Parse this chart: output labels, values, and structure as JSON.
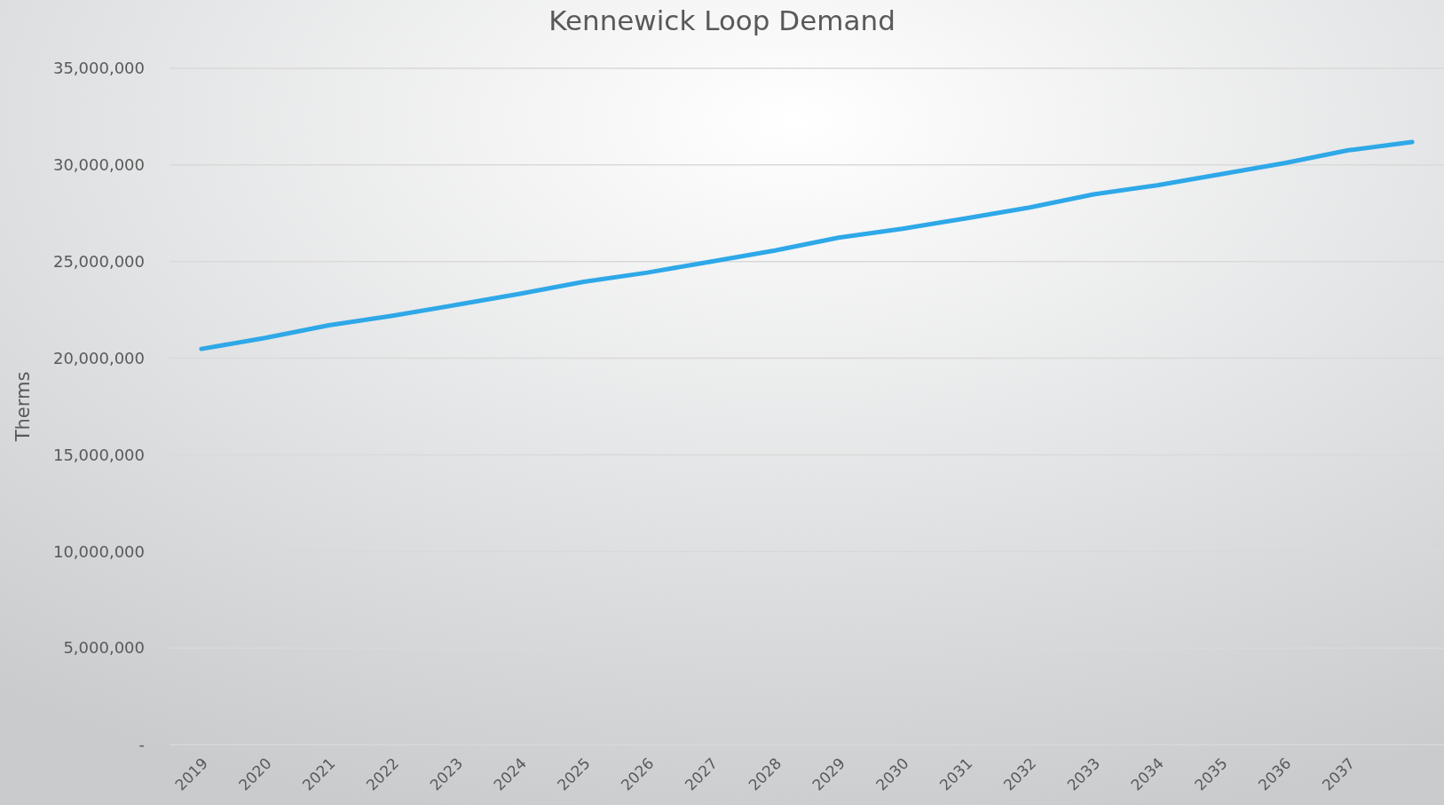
{
  "chart_data": {
    "type": "line",
    "title": "Kennewick Loop Demand",
    "ylabel": "Therms",
    "categories": [
      "2019",
      "2020",
      "2021",
      "2022",
      "2023",
      "2024",
      "2025",
      "2026",
      "2027",
      "2028",
      "2029",
      "2030",
      "2031",
      "2032",
      "2033",
      "2034",
      "2035",
      "2036",
      "2037",
      null
    ],
    "series": [
      {
        "color": "#2ea8e8",
        "values": [
          20480000,
          21050000,
          21700000,
          22200000,
          22760000,
          23330000,
          23950000,
          24430000,
          25000000,
          25570000,
          26240000,
          26700000,
          27240000,
          27800000,
          28480000,
          28950000,
          29520000,
          30100000,
          30760000,
          31190000
        ]
      }
    ],
    "ylim": [
      0,
      35000000
    ],
    "yticks": [
      {
        "value": 0,
        "label": "-"
      },
      {
        "value": 5000000,
        "label": "5,000,000"
      },
      {
        "value": 10000000,
        "label": "10,000,000"
      },
      {
        "value": 15000000,
        "label": "15,000,000"
      },
      {
        "value": 20000000,
        "label": "20,000,000"
      },
      {
        "value": 25000000,
        "label": "25,000,000"
      },
      {
        "value": 30000000,
        "label": "30,000,000"
      },
      {
        "value": 35000000,
        "label": "35,000,000"
      }
    ],
    "grid": "y",
    "marker": "none",
    "line_style": "solid"
  }
}
